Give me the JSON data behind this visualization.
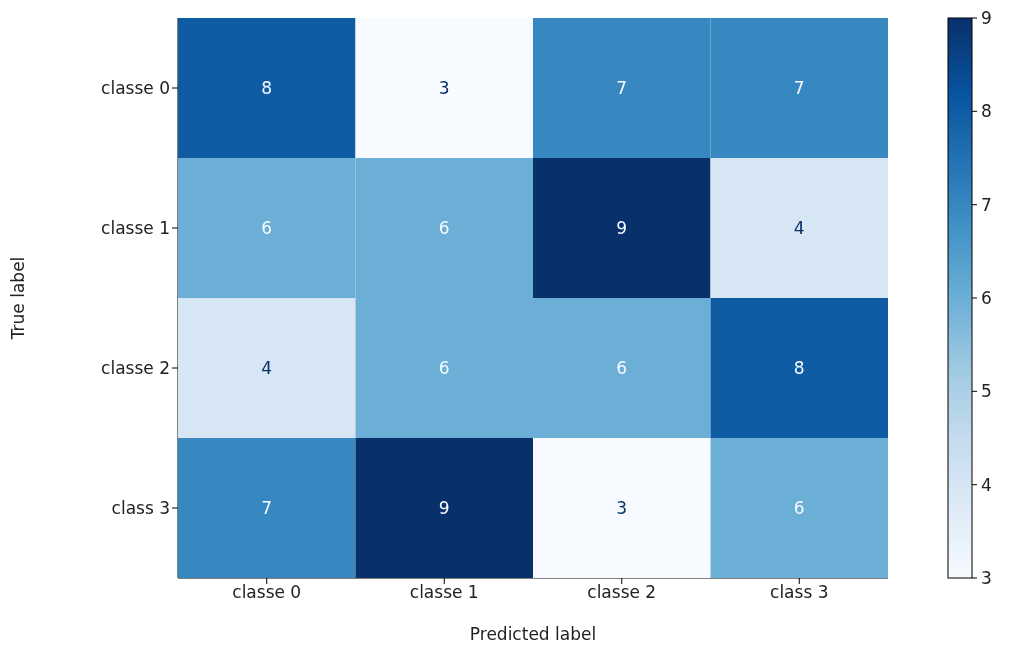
{
  "chart_data": {
    "type": "heatmap",
    "xlabel": "Predicted label",
    "ylabel": "True label",
    "categories": [
      "classe 0",
      "classe 1",
      "classe 2",
      "class 3"
    ],
    "y_categories": [
      "classe 0",
      "classe 1",
      "classe 2",
      "class 3"
    ],
    "cells": [
      [
        8,
        3,
        7,
        7
      ],
      [
        6,
        6,
        9,
        4
      ],
      [
        4,
        6,
        6,
        8
      ],
      [
        7,
        9,
        3,
        6
      ]
    ],
    "clim": [
      3,
      9
    ],
    "cticks": [
      3,
      4,
      5,
      6,
      7,
      8,
      9
    ],
    "data_labels": true
  }
}
